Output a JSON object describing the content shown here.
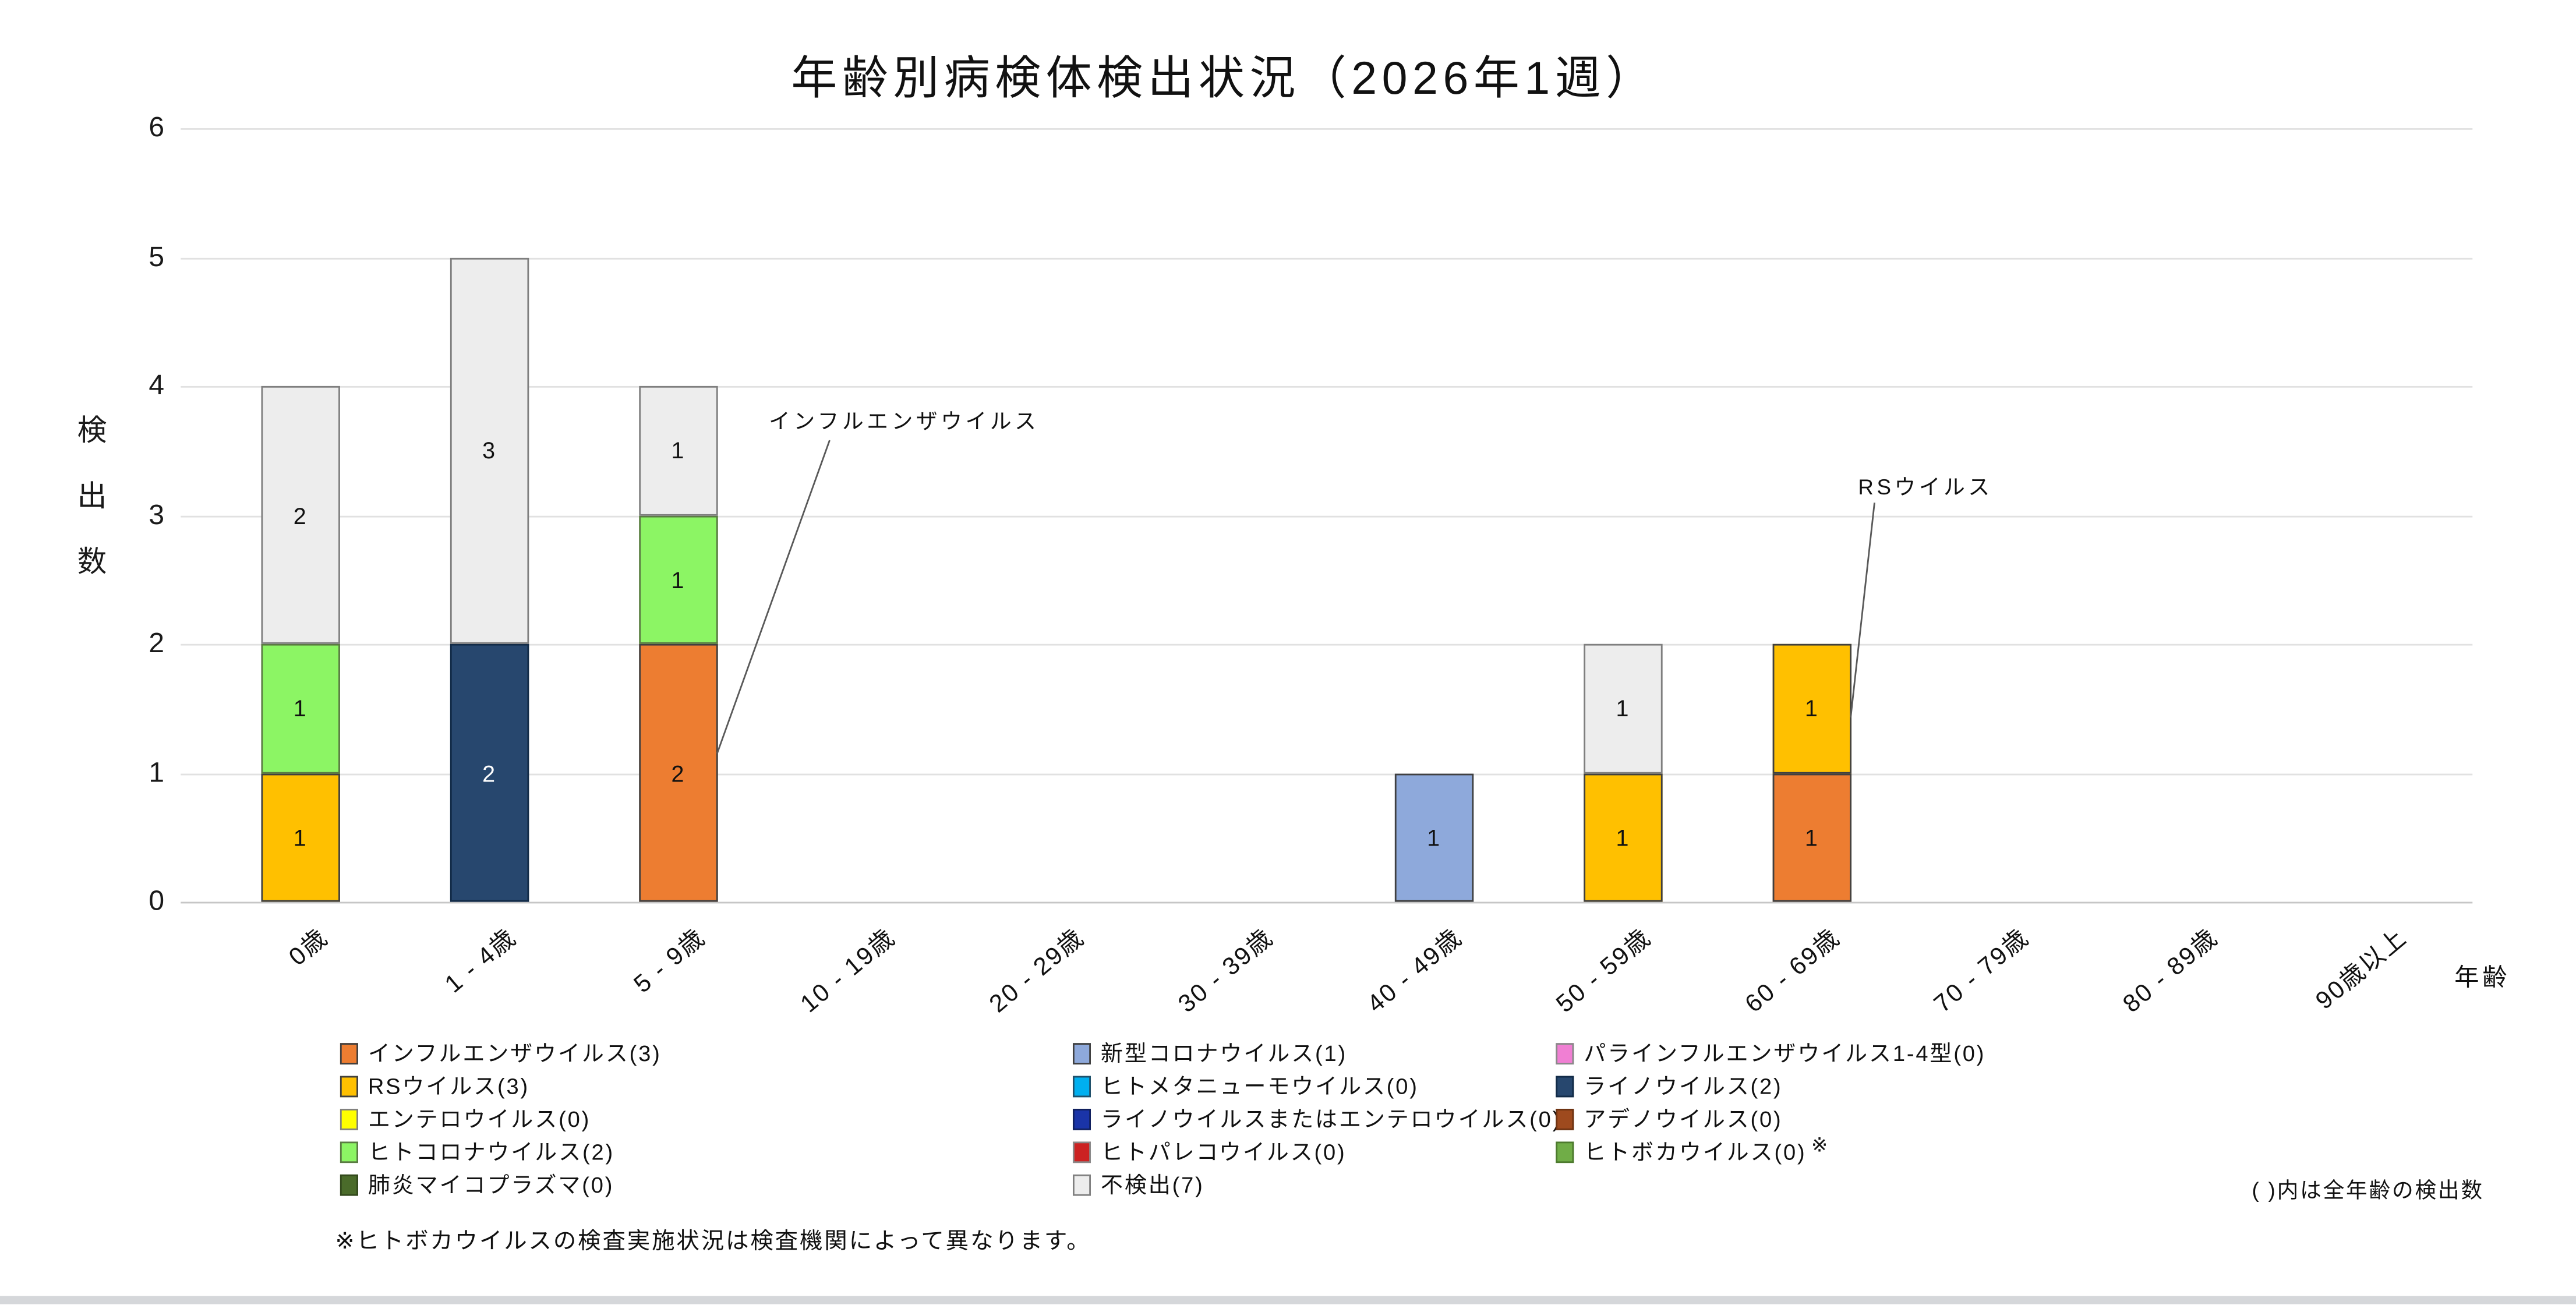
{
  "title": "年齢別病検体検出状況（2026年1週）",
  "y_axis": {
    "title": "検出数",
    "ticks": [
      0,
      1,
      2,
      3,
      4,
      5,
      6
    ],
    "max": 6
  },
  "x_axis": {
    "title": "年齢"
  },
  "notes": {
    "paren_note": "( )内は全年齢の検出数",
    "footnote": "※ヒトボカウイルスの検査実施状況は検査機関によって異なります。"
  },
  "palette": {
    "influenza": {
      "fill": "#ED7D31",
      "border": "#404040",
      "pattern": null,
      "label_color": "#111111"
    },
    "rsv": {
      "fill": "#FFC000",
      "border": "#404040",
      "pattern": null,
      "label_color": "#111111"
    },
    "entero": {
      "fill": "#FFFF00",
      "border": "#808080",
      "pattern": null,
      "label_color": "#111111"
    },
    "hcov": {
      "fill": "#8CF564",
      "border": "#5a7a43",
      "pattern": null,
      "label_color": "#111111"
    },
    "mycoplasma": {
      "fill": "#4A6B2A",
      "border": "#33491d",
      "pattern": null,
      "label_color": "#ffffff"
    },
    "covid19": {
      "fill": "#8EA9DB",
      "border": "#404040",
      "pattern": null,
      "label_color": "#111111"
    },
    "hmpv": {
      "fill": "#00B0F0",
      "border": "#20506a",
      "pattern": null,
      "label_color": "#111111"
    },
    "rhino_or_entero": {
      "fill": "#1A34A8",
      "border": "#10205e",
      "pattern": null,
      "label_color": "#ffffff"
    },
    "pareco": {
      "fill": "#CC2222",
      "border": "#8a8a8a",
      "pattern": "dots",
      "label_color": "#ffffff"
    },
    "notdetected": {
      "fill": "#EDEDED",
      "border": "#7F7F7F",
      "pattern": null,
      "label_color": "#111111"
    },
    "parainfluenza": {
      "fill": "#F07FD3",
      "border": "#8a8a8a",
      "pattern": "dots",
      "label_color": "#111111"
    },
    "rhino": {
      "fill": "#27476E",
      "border": "#122B47",
      "pattern": "dots",
      "label_color": "#ffffff"
    },
    "adeno": {
      "fill": "#9E4A1E",
      "border": "#6e3312",
      "pattern": null,
      "label_color": "#ffffff"
    },
    "boca": {
      "fill": "#70AD47",
      "border": "#4d7a2e",
      "pattern": null,
      "label_color": "#111111"
    }
  },
  "legend": {
    "columns": [
      [
        {
          "key": "influenza",
          "label": "インフルエンザウイルス(3)"
        },
        {
          "key": "rsv",
          "label": "RSウイルス(3)"
        },
        {
          "key": "entero",
          "label": "エンテロウイルス(0)"
        },
        {
          "key": "hcov",
          "label": "ヒトコロナウイルス(2)"
        },
        {
          "key": "mycoplasma",
          "label": "肺炎マイコプラズマ(0)"
        }
      ],
      [
        {
          "key": "covid19",
          "label": "新型コロナウイルス(1)"
        },
        {
          "key": "hmpv",
          "label": "ヒトメタニューモウイルス(0)"
        },
        {
          "key": "rhino_or_entero",
          "label": "ライノウイルスまたはエンテロウイルス(0)"
        },
        {
          "key": "pareco",
          "label": "ヒトパレコウイルス(0)"
        },
        {
          "key": "notdetected",
          "label": "不検出(7)"
        }
      ],
      [
        {
          "key": "parainfluenza",
          "label": "パラインフルエンザウイルス1-4型(0)"
        },
        {
          "key": "rhino",
          "label": "ライノウイルス(2)"
        },
        {
          "key": "adeno",
          "label": "アデノウイルス(0)"
        },
        {
          "key": "boca",
          "label": "ヒトボカウイルス(0)",
          "sup": "※"
        }
      ]
    ]
  },
  "chart_data": {
    "type": "bar",
    "subtype": "stacked",
    "title": "年齢別病検体検出状況（2026年1週）",
    "xlabel": "年齢",
    "ylabel": "検出数",
    "ylim": [
      0,
      6
    ],
    "grid": "horizontal",
    "legend_position": "bottom",
    "categories": [
      "0歳",
      "1 - 4歳",
      "5 - 9歳",
      "10 - 19歳",
      "20 - 29歳",
      "30 - 39歳",
      "40 - 49歳",
      "50 - 59歳",
      "60 - 69歳",
      "70 - 79歳",
      "80 - 89歳",
      "90歳以上"
    ],
    "stack_order": [
      "influenza",
      "rsv",
      "entero",
      "hcov",
      "mycoplasma",
      "covid19",
      "hmpv",
      "rhino_or_entero",
      "pareco",
      "parainfluenza",
      "rhino",
      "adeno",
      "boca",
      "notdetected"
    ],
    "series": [
      {
        "key": "influenza",
        "name": "インフルエンザウイルス",
        "total": 3,
        "values": [
          0,
          0,
          2,
          0,
          0,
          0,
          0,
          0,
          1,
          0,
          0,
          0
        ]
      },
      {
        "key": "rsv",
        "name": "RSウイルス",
        "total": 3,
        "values": [
          1,
          0,
          0,
          0,
          0,
          0,
          0,
          1,
          1,
          0,
          0,
          0
        ]
      },
      {
        "key": "entero",
        "name": "エンテロウイルス",
        "total": 0,
        "values": [
          0,
          0,
          0,
          0,
          0,
          0,
          0,
          0,
          0,
          0,
          0,
          0
        ]
      },
      {
        "key": "hcov",
        "name": "ヒトコロナウイルス",
        "total": 2,
        "values": [
          1,
          0,
          1,
          0,
          0,
          0,
          0,
          0,
          0,
          0,
          0,
          0
        ]
      },
      {
        "key": "mycoplasma",
        "name": "肺炎マイコプラズマ",
        "total": 0,
        "values": [
          0,
          0,
          0,
          0,
          0,
          0,
          0,
          0,
          0,
          0,
          0,
          0
        ]
      },
      {
        "key": "covid19",
        "name": "新型コロナウイルス",
        "total": 1,
        "values": [
          0,
          0,
          0,
          0,
          0,
          0,
          1,
          0,
          0,
          0,
          0,
          0
        ]
      },
      {
        "key": "hmpv",
        "name": "ヒトメタニューモウイルス",
        "total": 0,
        "values": [
          0,
          0,
          0,
          0,
          0,
          0,
          0,
          0,
          0,
          0,
          0,
          0
        ]
      },
      {
        "key": "rhino_or_entero",
        "name": "ライノウイルスまたはエンテロウイルス",
        "total": 0,
        "values": [
          0,
          0,
          0,
          0,
          0,
          0,
          0,
          0,
          0,
          0,
          0,
          0
        ]
      },
      {
        "key": "pareco",
        "name": "ヒトパレコウイルス",
        "total": 0,
        "values": [
          0,
          0,
          0,
          0,
          0,
          0,
          0,
          0,
          0,
          0,
          0,
          0
        ]
      },
      {
        "key": "notdetected",
        "name": "不検出",
        "total": 7,
        "values": [
          2,
          3,
          1,
          0,
          0,
          0,
          0,
          1,
          0,
          0,
          0,
          0
        ]
      },
      {
        "key": "parainfluenza",
        "name": "パラインフルエンザウイルス1-4型",
        "total": 0,
        "values": [
          0,
          0,
          0,
          0,
          0,
          0,
          0,
          0,
          0,
          0,
          0,
          0
        ]
      },
      {
        "key": "rhino",
        "name": "ライノウイルス",
        "total": 2,
        "values": [
          0,
          2,
          0,
          0,
          0,
          0,
          0,
          0,
          0,
          0,
          0,
          0
        ]
      },
      {
        "key": "adeno",
        "name": "アデノウイルス",
        "total": 0,
        "values": [
          0,
          0,
          0,
          0,
          0,
          0,
          0,
          0,
          0,
          0,
          0,
          0
        ]
      },
      {
        "key": "boca",
        "name": "ヒトボカウイルス",
        "total": 0,
        "values": [
          0,
          0,
          0,
          0,
          0,
          0,
          0,
          0,
          0,
          0,
          0,
          0
        ]
      }
    ],
    "annotations": [
      {
        "text": "インフルエンザウイルス",
        "target_category": "5 - 9歳",
        "target_category_index": 2,
        "target_value": 1.15
      },
      {
        "text": "RSウイルス",
        "target_category": "60 - 69歳",
        "target_category_index": 8,
        "target_value": 1.43
      }
    ]
  }
}
